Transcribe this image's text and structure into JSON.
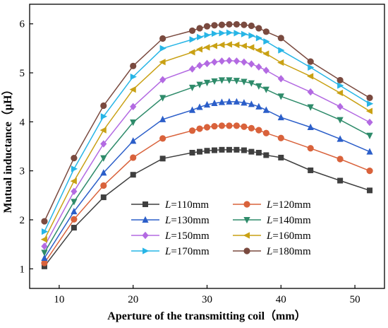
{
  "chart_data": {
    "type": "line",
    "xlabel": "Aperture of the transmitting coil（mm）",
    "ylabel": "Mutual inductance（μH）",
    "xlim": [
      6,
      54
    ],
    "ylim": [
      0.6,
      6.4
    ],
    "xticks": [
      10,
      20,
      30,
      40,
      50
    ],
    "yticks": [
      1,
      2,
      3,
      4,
      5,
      6
    ],
    "legend_placement": "bottom-right, 2 columns",
    "x": [
      8,
      12,
      16,
      20,
      24,
      28,
      29,
      30,
      31,
      32,
      33,
      34,
      35,
      36,
      37,
      38,
      40,
      44,
      48,
      52
    ],
    "series": [
      {
        "name": "110mm",
        "color": "#3f3f3f",
        "marker": "square",
        "values": [
          1.05,
          1.84,
          2.46,
          2.92,
          3.25,
          3.37,
          3.39,
          3.41,
          3.42,
          3.43,
          3.43,
          3.43,
          3.42,
          3.39,
          3.37,
          3.32,
          3.27,
          3.01,
          2.8,
          2.6
        ]
      },
      {
        "name": "120mm",
        "color": "#d9623b",
        "marker": "circle",
        "values": [
          1.12,
          2.01,
          2.7,
          3.27,
          3.66,
          3.82,
          3.86,
          3.89,
          3.91,
          3.92,
          3.92,
          3.92,
          3.9,
          3.87,
          3.83,
          3.77,
          3.67,
          3.46,
          3.24,
          3.0
        ]
      },
      {
        "name": "130mm",
        "color": "#2b5ec9",
        "marker": "triangle-up",
        "values": [
          1.22,
          2.17,
          2.96,
          3.61,
          4.05,
          4.24,
          4.3,
          4.35,
          4.38,
          4.4,
          4.41,
          4.41,
          4.39,
          4.36,
          4.31,
          4.24,
          4.09,
          3.89,
          3.65,
          3.39
        ]
      },
      {
        "name": "140mm",
        "color": "#2e8b6a",
        "marker": "triangle-down",
        "values": [
          1.33,
          2.37,
          3.26,
          3.99,
          4.49,
          4.7,
          4.76,
          4.8,
          4.83,
          4.85,
          4.85,
          4.84,
          4.82,
          4.79,
          4.73,
          4.66,
          4.52,
          4.3,
          4.04,
          3.72
        ]
      },
      {
        "name": "150mm",
        "color": "#b36ae2",
        "marker": "diamond",
        "values": [
          1.46,
          2.58,
          3.55,
          4.31,
          4.86,
          5.08,
          5.15,
          5.19,
          5.22,
          5.24,
          5.25,
          5.24,
          5.22,
          5.18,
          5.12,
          5.05,
          4.88,
          4.61,
          4.31,
          3.99
        ]
      },
      {
        "name": "160mm",
        "color": "#c9a114",
        "marker": "triangle-left",
        "values": [
          1.6,
          2.79,
          3.83,
          4.66,
          5.22,
          5.42,
          5.48,
          5.52,
          5.55,
          5.57,
          5.58,
          5.57,
          5.55,
          5.52,
          5.46,
          5.39,
          5.21,
          4.93,
          4.59,
          4.22
        ]
      },
      {
        "name": "170mm",
        "color": "#27b5e6",
        "marker": "triangle-right",
        "values": [
          1.76,
          3.04,
          4.11,
          4.92,
          5.5,
          5.68,
          5.73,
          5.77,
          5.8,
          5.81,
          5.82,
          5.81,
          5.79,
          5.76,
          5.71,
          5.64,
          5.46,
          5.11,
          4.74,
          4.37
        ]
      },
      {
        "name": "180mm",
        "color": "#7a4a3f",
        "marker": "circle",
        "values": [
          1.97,
          3.26,
          4.33,
          5.14,
          5.7,
          5.86,
          5.91,
          5.95,
          5.97,
          5.98,
          5.99,
          5.99,
          5.98,
          5.96,
          5.91,
          5.84,
          5.71,
          5.23,
          4.85,
          4.49
        ]
      }
    ],
    "legend_prefix": "L"
  }
}
